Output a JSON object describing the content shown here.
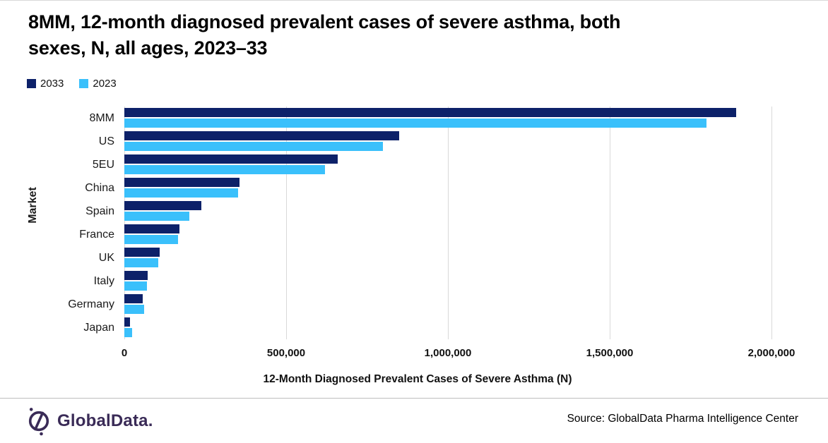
{
  "page": {
    "title_line1": "8MM, 12-month diagnosed prevalent cases of  severe asthma, both",
    "title_line2": "sexes, N, all ages, 2023–33"
  },
  "chart_data": {
    "type": "bar",
    "orientation": "horizontal",
    "title": "8MM, 12-month diagnosed prevalent cases of  severe asthma, both sexes, N, all ages, 2023–33",
    "categories": [
      "8MM",
      "US",
      "5EU",
      "China",
      "Spain",
      "France",
      "UK",
      "Italy",
      "Germany",
      "Japan"
    ],
    "series": [
      {
        "name": "2033",
        "color": "#0d2169",
        "values": [
          1890000,
          850000,
          660000,
          355000,
          238000,
          170000,
          110000,
          71000,
          57000,
          18000
        ]
      },
      {
        "name": "2023",
        "color": "#3ac0fb",
        "values": [
          1800000,
          800000,
          620000,
          352000,
          200000,
          167000,
          105000,
          70000,
          61000,
          23000
        ]
      }
    ],
    "xlabel": "12-Month Diagnosed Prevalent Cases of Severe Asthma (N)",
    "ylabel": "Market",
    "xlim": [
      0,
      2000000
    ],
    "xticks": [
      0,
      500000,
      1000000,
      1500000,
      2000000
    ],
    "xtick_labels": [
      "0",
      "500,000",
      "1,000,000",
      "1,500,000",
      "2,000,000"
    ],
    "legend_position": "top-left",
    "grid": "vertical",
    "grid_color": "#d9d9d9"
  },
  "footer": {
    "logo_text": "GlobalData.",
    "logo_color": "#3a2b57",
    "source": "Source: GlobalData Pharma Intelligence Center"
  }
}
